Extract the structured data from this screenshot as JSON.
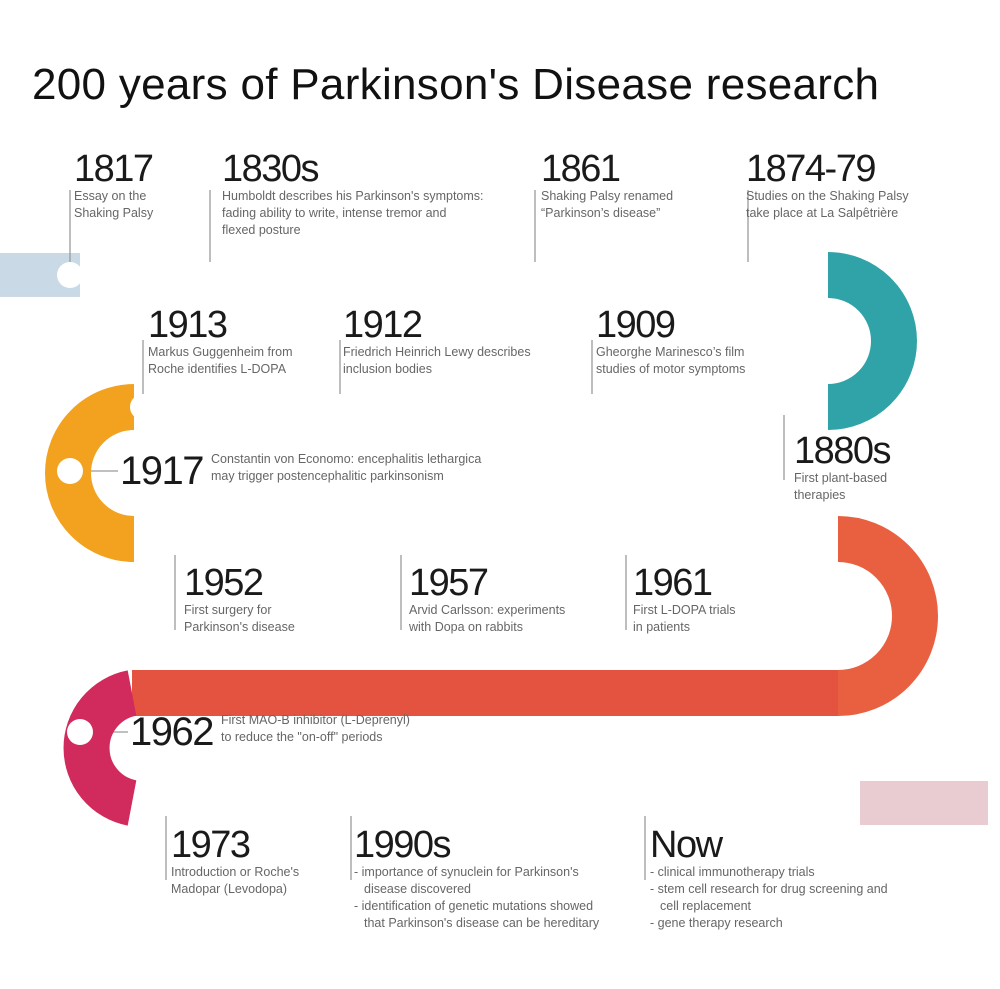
{
  "title": "200 years of Parkinson's Disease research",
  "colors": {
    "row1": [
      "#3d4f73",
      "#2e6f86",
      "#2fa3a7"
    ],
    "row2": [
      "#f3a21f",
      "#7aa37c",
      "#30a3a8"
    ],
    "row3": [
      "#f6a11f",
      "#ef7a33",
      "#e8603f"
    ],
    "row4": [
      "#d12a5c",
      "#c22c44",
      "#ad2530"
    ],
    "line": "#9a9a9a",
    "lead_in": "#c9d9e5",
    "lead_out": "#e8ccd2"
  },
  "events": [
    {
      "year": "1817",
      "desc": "Essay on the\nShaking Palsy"
    },
    {
      "year": "1830s",
      "desc": "Humboldt describes his Parkinson's symptoms:\nfading ability to write, intense tremor and\nflexed posture"
    },
    {
      "year": "1861",
      "desc": "Shaking Palsy renamed\n“Parkinson’s disease”"
    },
    {
      "year": "1874-79",
      "desc": "Studies on the Shaking Palsy\ntake place at La Salpêtrière"
    },
    {
      "year": "1880s",
      "desc": "First plant-based\ntherapies"
    },
    {
      "year": "1909",
      "desc": "Gheorghe Marinesco’s film\nstudies of motor symptoms"
    },
    {
      "year": "1912",
      "desc": "Friedrich Heinrich Lewy describes\ninclusion bodies"
    },
    {
      "year": "1913",
      "desc": "Markus Guggenheim from\nRoche identifies L-DOPA"
    },
    {
      "year": "1917",
      "desc": "Constantin von Economo: encephalitis lethargica\nmay trigger postencephalitic parkinsonism"
    },
    {
      "year": "1952",
      "desc": "First surgery for\nParkinson's disease"
    },
    {
      "year": "1957",
      "desc": "Arvid Carlsson: experiments\nwith Dopa on rabbits"
    },
    {
      "year": "1961",
      "desc": "First L-DOPA trials\nin patients"
    },
    {
      "year": "1962",
      "desc": "First MAO-B inhibitor (L-Deprenyl)\nto reduce the \"on-off\" periods"
    },
    {
      "year": "1973",
      "desc": "Introduction or Roche's\nMadopar (Levodopa)"
    },
    {
      "year": "1990s",
      "items": [
        "importance of synuclein for Parkinson's\ndisease discovered",
        "identification of genetic mutations showed\nthat Parkinson's disease can be hereditary"
      ]
    },
    {
      "year": "Now",
      "items": [
        "clinical immunotherapy trials",
        "stem cell research for drug screening and\ncell replacement",
        "gene therapy research"
      ]
    }
  ]
}
